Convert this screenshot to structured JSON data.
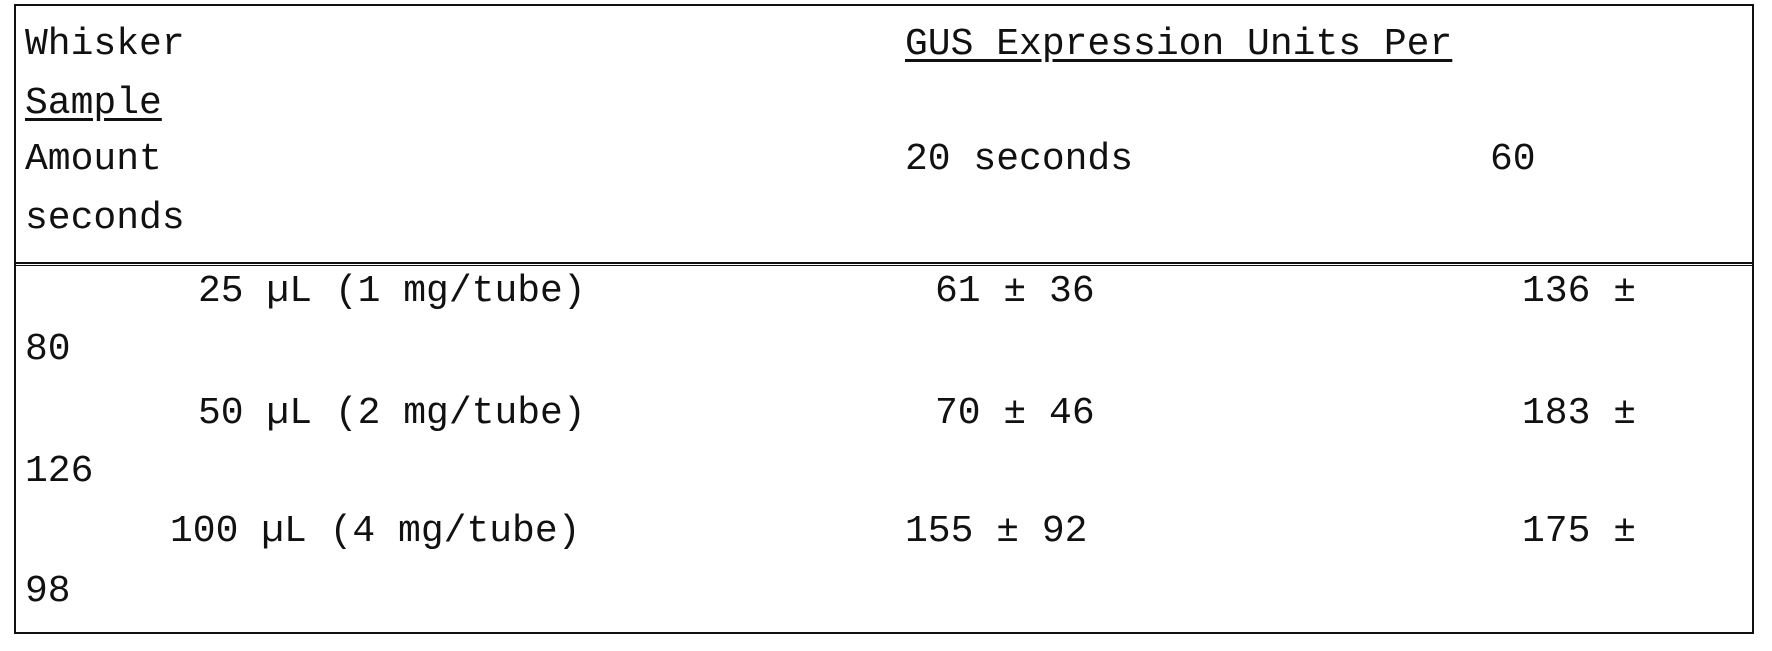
{
  "header": {
    "col1_line1": "Whisker",
    "col1_line2": "Sample",
    "col1_line3": "Amount",
    "col1_line4": "seconds",
    "col2_title": "GUS Expression Units Per",
    "col2_sub": "20 seconds",
    "col3_sub": "60"
  },
  "rows": [
    {
      "amount": "25 µL (1 mg/tube)",
      "val20": "61 ± 36",
      "val60": "136 ±",
      "val60_wrap": "80"
    },
    {
      "amount": "50 µL (2 mg/tube)",
      "val20": "70 ± 46",
      "val60": "183 ±",
      "val60_wrap": "126"
    },
    {
      "amount": "100 µL (4 mg/tube)",
      "val20": "155 ± 92",
      "val60": "175 ±",
      "val60_wrap": "98"
    }
  ]
}
